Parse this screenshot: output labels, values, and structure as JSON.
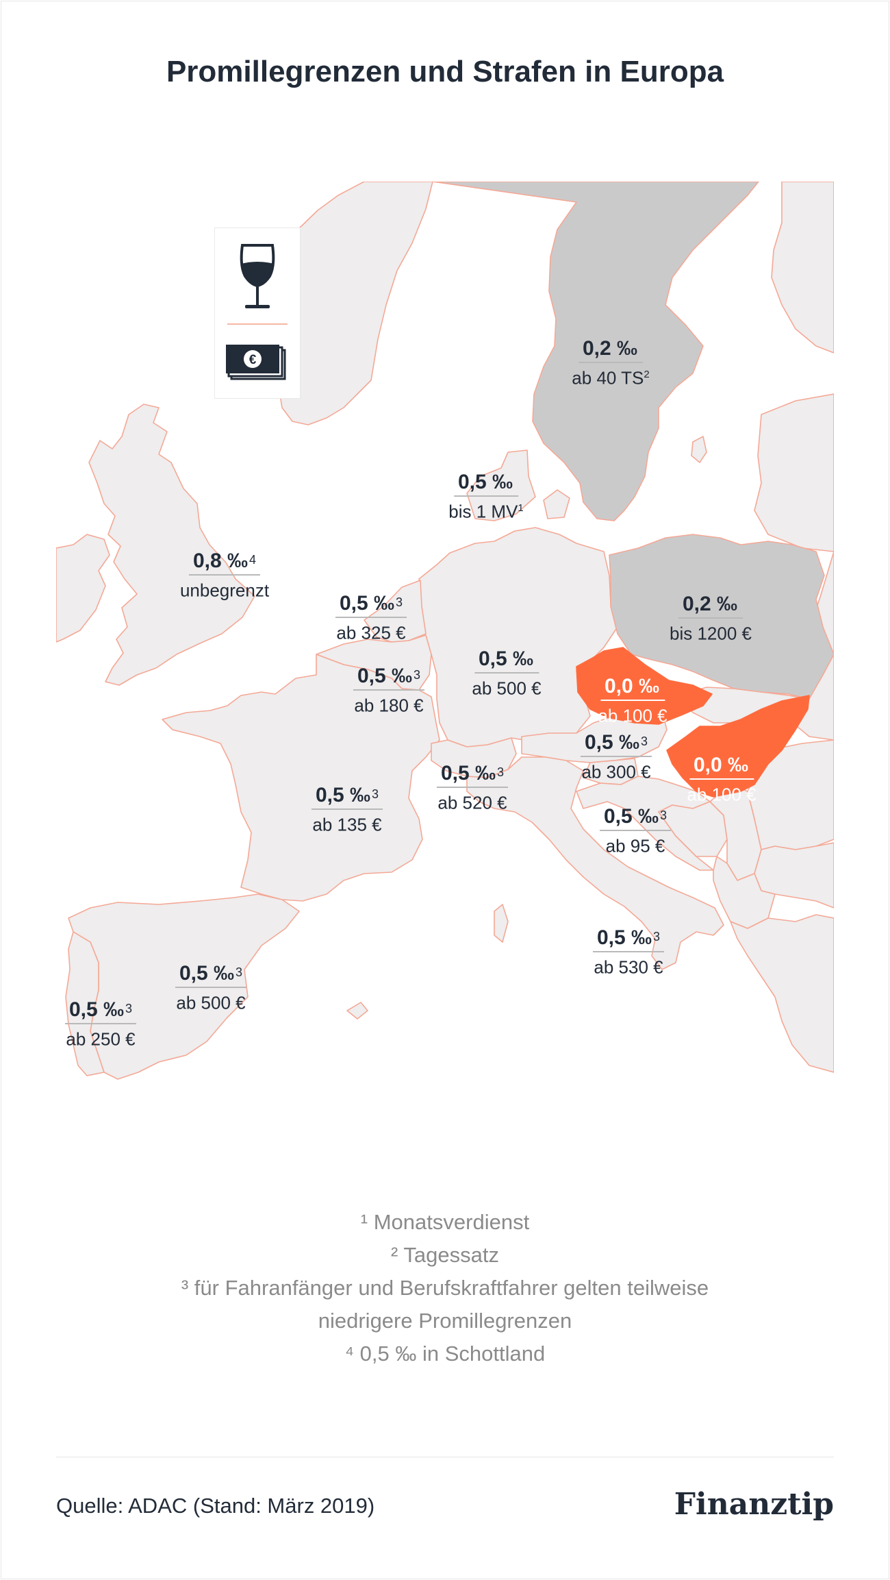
{
  "title": "Promillegrenzen und Strafen in Europa",
  "legend": {
    "top_icon": "wine-glass-icon",
    "bottom_icon": "money-bills-euro-icon"
  },
  "colors": {
    "land": "#efeded",
    "border": "#f4a896",
    "grey": "#cbcaca",
    "orange": "#ff6a3d",
    "text": "#222b38"
  },
  "countries": [
    {
      "id": "schweden",
      "limit": "0,2 ‰",
      "limit_note": "",
      "penalty": "ab 40 TS",
      "penalty_note": "2"
    },
    {
      "id": "daenemark",
      "limit": "0,5 ‰",
      "limit_note": "",
      "penalty": "bis 1 MV",
      "penalty_note": "1"
    },
    {
      "id": "grossbritannien",
      "limit": "0,8 ‰",
      "limit_note": "4",
      "penalty": "unbegrenzt",
      "penalty_note": ""
    },
    {
      "id": "niederlande",
      "limit": "0,5 ‰",
      "limit_note": "3",
      "penalty": "ab 325 €",
      "penalty_note": ""
    },
    {
      "id": "belgien",
      "limit": "0,5 ‰",
      "limit_note": "3",
      "penalty": "ab 180 €",
      "penalty_note": ""
    },
    {
      "id": "deutschland",
      "limit": "0,5 ‰",
      "limit_note": "",
      "penalty": "ab 500 €",
      "penalty_note": ""
    },
    {
      "id": "polen",
      "limit": "0,2 ‰",
      "limit_note": "",
      "penalty": "bis 1200 €",
      "penalty_note": ""
    },
    {
      "id": "tschechien",
      "limit": "0,0 ‰",
      "limit_note": "",
      "penalty": "ab 100 €",
      "penalty_note": ""
    },
    {
      "id": "oesterreich",
      "limit": "0,5 ‰",
      "limit_note": "3",
      "penalty": "ab 300 €",
      "penalty_note": ""
    },
    {
      "id": "ungarn",
      "limit": "0,0 ‰",
      "limit_note": "",
      "penalty": "ab 100 €",
      "penalty_note": ""
    },
    {
      "id": "schweiz",
      "limit": "0,5 ‰",
      "limit_note": "3",
      "penalty": "ab 520 €",
      "penalty_note": ""
    },
    {
      "id": "frankreich",
      "limit": "0,5 ‰",
      "limit_note": "3",
      "penalty": "ab 135 €",
      "penalty_note": ""
    },
    {
      "id": "kroatien",
      "limit": "0,5 ‰",
      "limit_note": "3",
      "penalty": "ab 95 €",
      "penalty_note": ""
    },
    {
      "id": "italien",
      "limit": "0,5 ‰",
      "limit_note": "3",
      "penalty": "ab 530 €",
      "penalty_note": ""
    },
    {
      "id": "spanien",
      "limit": "0,5 ‰",
      "limit_note": "3",
      "penalty": "ab 500 €",
      "penalty_note": ""
    },
    {
      "id": "portugal",
      "limit": "0,5 ‰",
      "limit_note": "3",
      "penalty": "ab 250 €",
      "penalty_note": ""
    }
  ],
  "footnotes": {
    "n1": "¹ Monatsverdienst",
    "n2": "² Tagessatz",
    "n3a": "³ für Fahranfänger und Berufskraftfahrer gelten teilweise",
    "n3b": "niedrigere Promillegrenzen",
    "n4": "⁴ 0,5 ‰ in Schottland"
  },
  "source": "Quelle: ADAC (Stand: März 2019)",
  "brand": "Finanztip"
}
